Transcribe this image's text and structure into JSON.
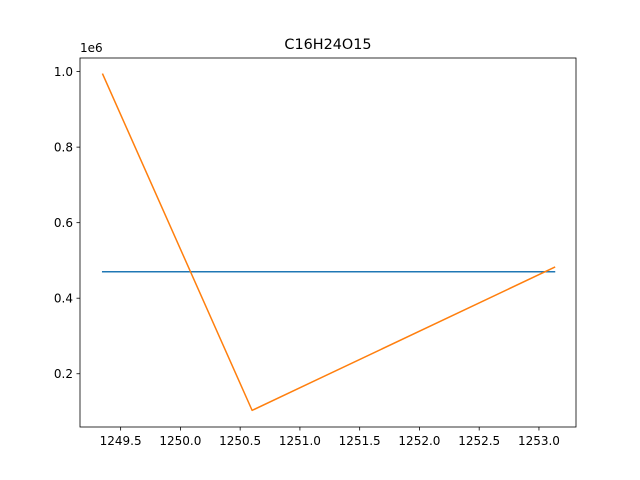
{
  "chart_data": {
    "type": "line",
    "title": "C16H24O15",
    "xlabel": "",
    "ylabel": "",
    "y_offset_text": "1e6",
    "xlim": [
      1249.16,
      1253.31
    ],
    "ylim": [
      59000,
      1036000
    ],
    "x_ticks": [
      1249.5,
      1250.0,
      1250.5,
      1251.0,
      1251.5,
      1252.0,
      1252.5,
      1253.0
    ],
    "x_tick_labels": [
      "1249.5",
      "1250.0",
      "1250.5",
      "1251.0",
      "1251.5",
      "1252.0",
      "1252.5",
      "1253.0"
    ],
    "y_ticks": [
      200000,
      400000,
      600000,
      800000,
      1000000
    ],
    "y_tick_labels": [
      "0.2",
      "0.4",
      "0.6",
      "0.8",
      "1.0"
    ],
    "grid": false,
    "series": [
      {
        "color": "#1f77b4",
        "x": [
          1249.35,
          1253.13
        ],
        "y": [
          470000,
          470000
        ]
      },
      {
        "color": "#ff7f0e",
        "x": [
          1249.35,
          1250.6,
          1253.13
        ],
        "y": [
          993000,
          103000,
          482000
        ]
      }
    ]
  }
}
